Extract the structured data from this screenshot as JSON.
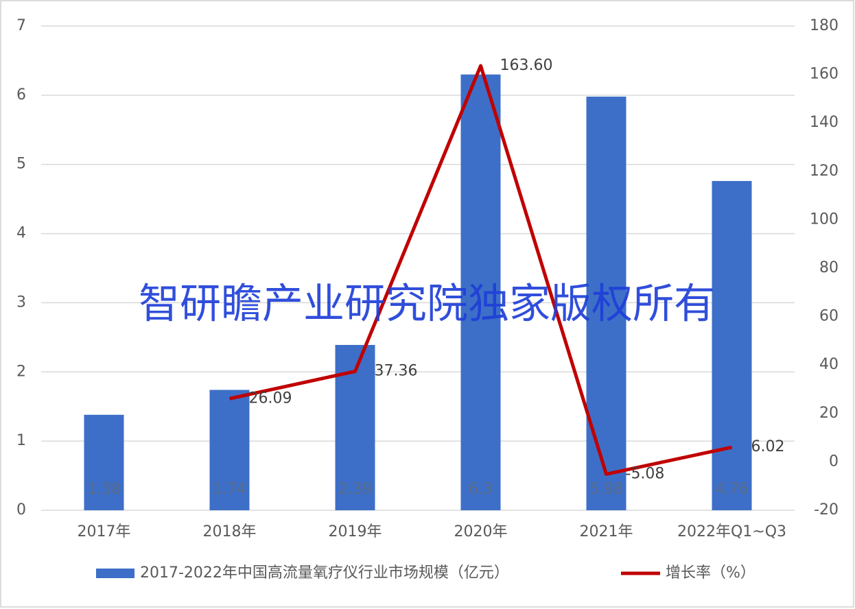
{
  "chart_data": {
    "type": "bar-line",
    "categories": [
      "2017年",
      "2018年",
      "2019年",
      "2020年",
      "2021年",
      "2022年Q1~Q3"
    ],
    "series": [
      {
        "name": "2017-2022年中国高流量氧疗仪行业市场规模（亿元）",
        "type": "bar",
        "color": "#3d6fc8",
        "values": [
          1.38,
          1.74,
          2.39,
          6.3,
          5.98,
          4.76
        ]
      },
      {
        "name": "增长率（%）",
        "type": "line",
        "color": "#c00000",
        "axis": "y2",
        "values": [
          null,
          26.09,
          37.36,
          163.6,
          -5.08,
          6.02
        ],
        "value_labels": [
          null,
          "26.09",
          "37.36",
          "163.60",
          "-5.08",
          "6.02"
        ]
      }
    ],
    "ylim": [
      0,
      7
    ],
    "yticks": [
      0,
      1,
      2,
      3,
      4,
      5,
      6,
      7
    ],
    "y2lim": [
      -20,
      180
    ],
    "y2ticks": [
      -20,
      0,
      20,
      40,
      60,
      80,
      100,
      120,
      140,
      160,
      180
    ],
    "grid": true,
    "legend": "bottom",
    "watermark": "智研瞻产业研究院独家版权所有"
  }
}
